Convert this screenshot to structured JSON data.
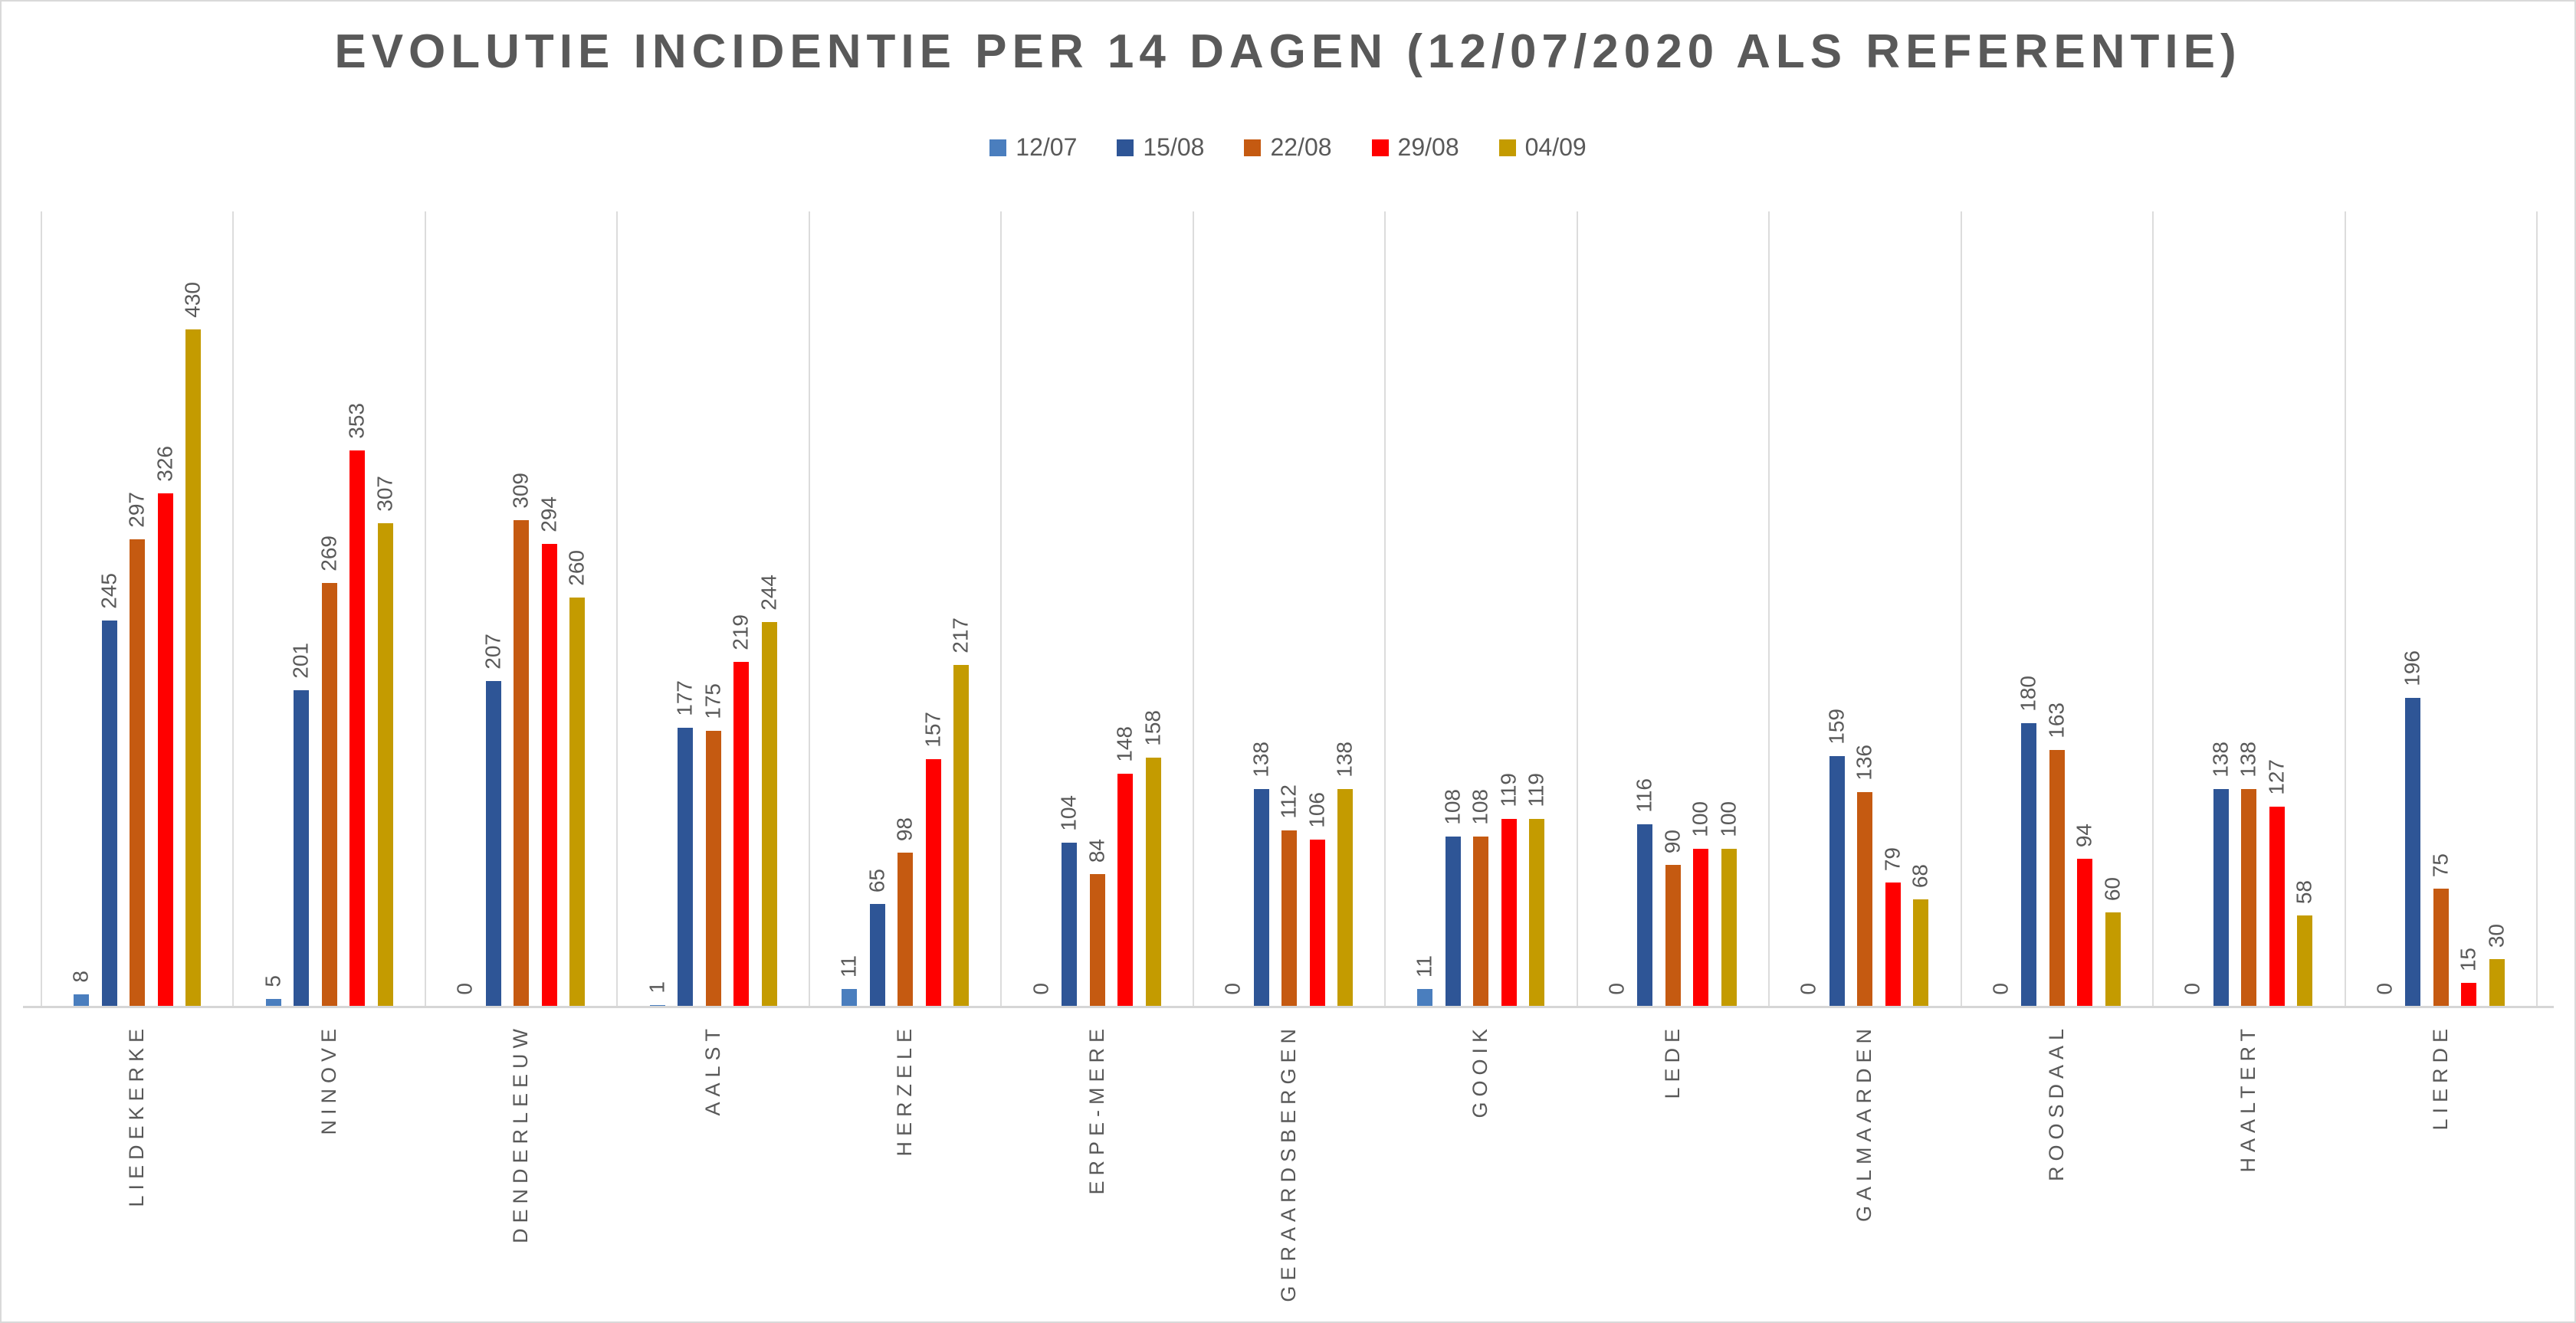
{
  "chart_data": {
    "type": "bar",
    "title": "EVOLUTIE INCIDENTIE PER 14 DAGEN (12/07/2020 ALS REFERENTIE)",
    "categories": [
      "LIEDEKERKE",
      "NINOVE",
      "DENDERLEEUW",
      "AALST",
      "HERZELE",
      "ERPE-MERE",
      "GERAARDSBERGEN",
      "GOOIK",
      "LEDE",
      "GALMAARDEN",
      "ROOSDAAL",
      "HAALTERT",
      "LIERDE"
    ],
    "series": [
      {
        "name": "12/07",
        "color": "#4A7EBE",
        "values": [
          8,
          5,
          0,
          1,
          11,
          0,
          0,
          11,
          0,
          0,
          0,
          0,
          0
        ]
      },
      {
        "name": "15/08",
        "color": "#2E5596",
        "values": [
          245,
          201,
          207,
          177,
          65,
          104,
          138,
          108,
          116,
          159,
          180,
          138,
          196
        ]
      },
      {
        "name": "22/08",
        "color": "#C55A11",
        "values": [
          297,
          269,
          309,
          175,
          98,
          84,
          112,
          108,
          90,
          136,
          163,
          138,
          75
        ]
      },
      {
        "name": "29/08",
        "color": "#FF0000",
        "values": [
          326,
          353,
          294,
          219,
          157,
          148,
          106,
          119,
          100,
          79,
          94,
          127,
          15
        ]
      },
      {
        "name": "04/09",
        "color": "#C49B00",
        "values": [
          430,
          307,
          260,
          244,
          217,
          158,
          138,
          119,
          100,
          68,
          60,
          58,
          30
        ]
      }
    ],
    "value_labels": true,
    "legend_position": "top",
    "xlabel": "",
    "ylabel": "",
    "ylim": [
      0,
      505
    ],
    "grid": "vertical-category-separators",
    "axis_color": "#D6D6D6",
    "gridline_color": "#DCDCDC",
    "label_color": "#595959",
    "title_color": "#595959",
    "background": "#FFFFFF"
  }
}
